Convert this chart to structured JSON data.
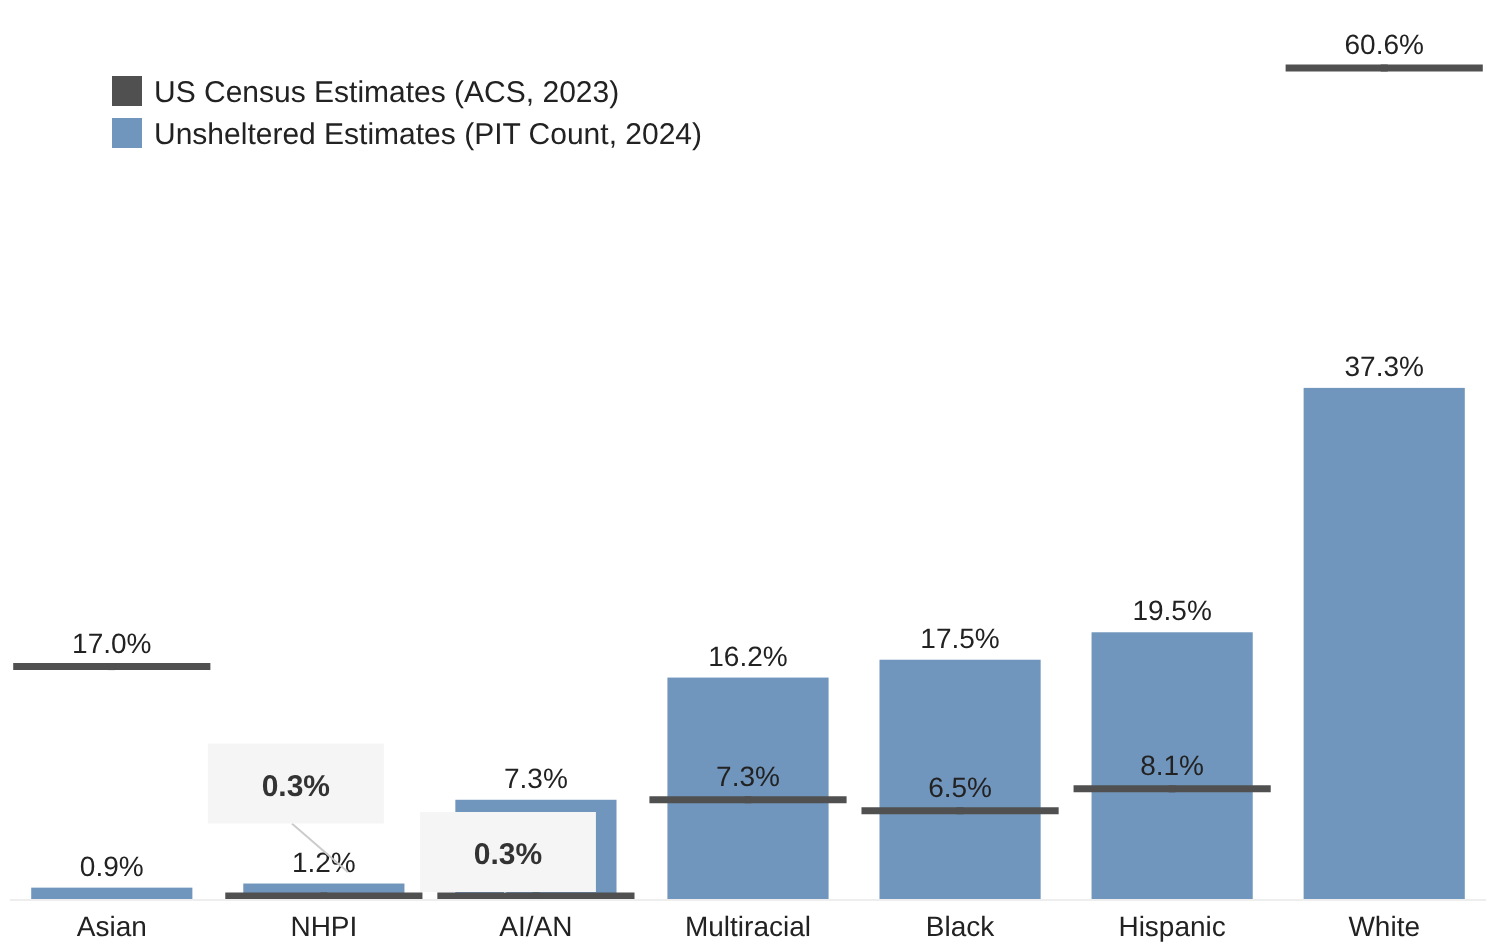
{
  "chart_data": {
    "type": "bar",
    "categories": [
      "Asian",
      "NHPI",
      "AI/AN",
      "Multiracial",
      "Black",
      "Hispanic",
      "White"
    ],
    "series": [
      {
        "name": "US Census Estimates (ACS, 2023)",
        "type": "scatter",
        "color": "#505050",
        "values": [
          17.0,
          0.3,
          0.3,
          7.3,
          6.5,
          8.1,
          60.6
        ],
        "value_labels": [
          "17.0%",
          "0.3%",
          "0.3%",
          "7.3%",
          "6.5%",
          "8.1%",
          "60.6%"
        ]
      },
      {
        "name": "Unsheltered Estimates (PIT Count, 2024)",
        "color": "#7096bd",
        "values": [
          0.9,
          1.2,
          7.3,
          16.2,
          17.5,
          19.5,
          37.3
        ],
        "value_labels": [
          "0.9%",
          "1.2%",
          "7.3%",
          "16.2%",
          "17.5%",
          "19.5%",
          "37.3%"
        ]
      }
    ],
    "legend": "top left"
  }
}
